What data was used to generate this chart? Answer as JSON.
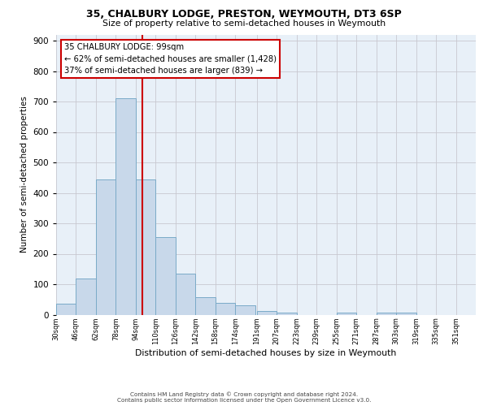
{
  "title": "35, CHALBURY LODGE, PRESTON, WEYMOUTH, DT3 6SP",
  "subtitle": "Size of property relative to semi-detached houses in Weymouth",
  "xlabel": "Distribution of semi-detached houses by size in Weymouth",
  "ylabel": "Number of semi-detached properties",
  "bin_labels": [
    "30sqm",
    "46sqm",
    "62sqm",
    "78sqm",
    "94sqm",
    "110sqm",
    "126sqm",
    "142sqm",
    "158sqm",
    "174sqm",
    "191sqm",
    "207sqm",
    "223sqm",
    "239sqm",
    "255sqm",
    "271sqm",
    "287sqm",
    "303sqm",
    "319sqm",
    "335sqm",
    "351sqm"
  ],
  "bin_edges": [
    30,
    46,
    62,
    78,
    94,
    110,
    126,
    142,
    158,
    174,
    191,
    207,
    223,
    239,
    255,
    271,
    287,
    303,
    319,
    335,
    351
  ],
  "bar_heights": [
    35,
    118,
    445,
    710,
    445,
    255,
    135,
    57,
    38,
    30,
    11,
    8,
    0,
    0,
    8,
    0,
    8,
    8,
    0,
    0,
    0
  ],
  "bar_color": "#c8d8ea",
  "bar_edge_color": "#7aaac8",
  "property_line_x": 99,
  "red_line_color": "#cc0000",
  "annotation_title": "35 CHALBURY LODGE: 99sqm",
  "annotation_line1": "← 62% of semi-detached houses are smaller (1,428)",
  "annotation_line2": "37% of semi-detached houses are larger (839) →",
  "annotation_box_color": "#ffffff",
  "annotation_box_edge": "#cc0000",
  "ylim": [
    0,
    920
  ],
  "yticks": [
    0,
    100,
    200,
    300,
    400,
    500,
    600,
    700,
    800,
    900
  ],
  "footer1": "Contains HM Land Registry data © Crown copyright and database right 2024.",
  "footer2": "Contains public sector information licensed under the Open Government Licence v3.0.",
  "bg_color": "#ffffff",
  "plot_bg_color": "#e8f0f8",
  "grid_color": "#c8c8d0"
}
